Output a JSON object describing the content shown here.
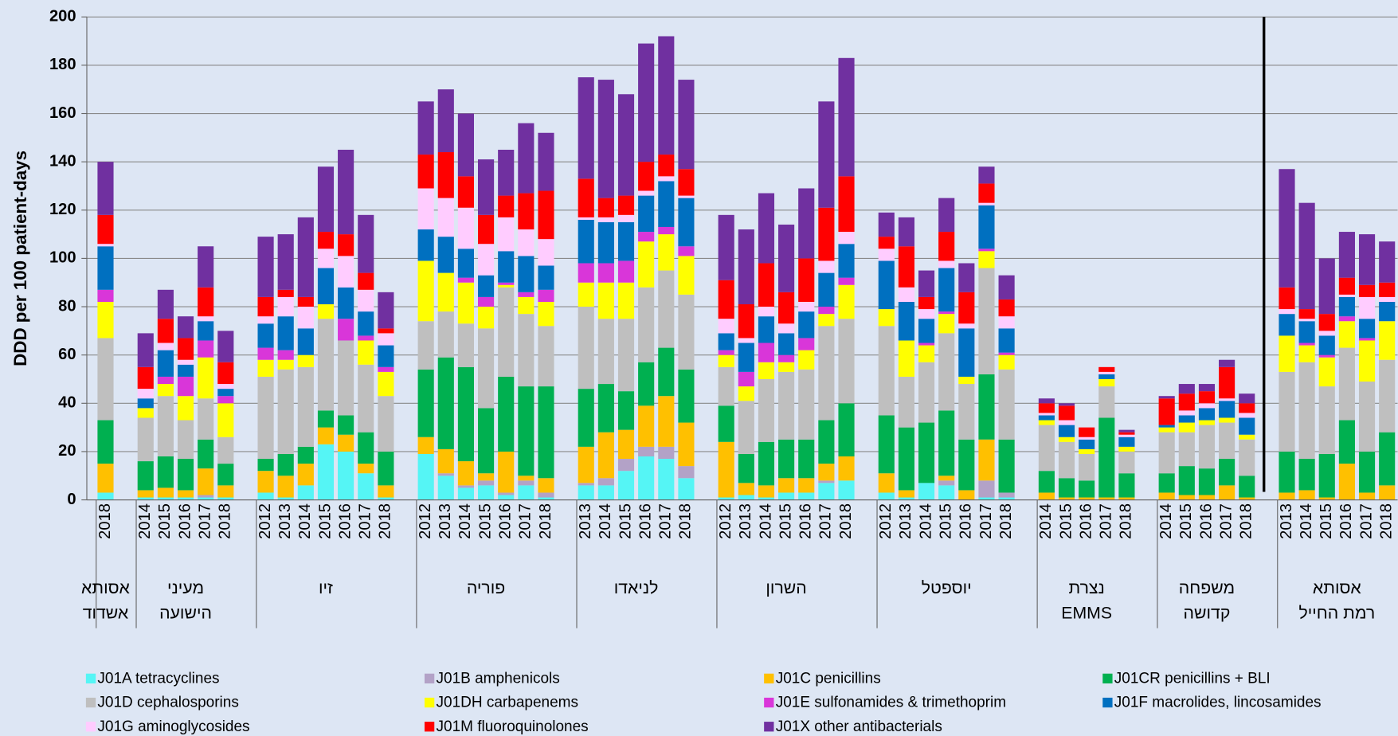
{
  "chart_data": {
    "type": "stacked_bar",
    "y_label": "DDD per 100 patient-days",
    "ylim": [
      0,
      200
    ],
    "yticks": [
      0,
      20,
      40,
      60,
      80,
      100,
      120,
      140,
      160,
      180,
      200
    ],
    "grid": true,
    "legend": "bottom",
    "groups": [
      {
        "name": [
          "אסותא",
          "אשדוד"
        ],
        "categories": [
          "2018"
        ]
      },
      {
        "name": [
          "מעיני",
          "הישועה"
        ],
        "categories": [
          "2014",
          "2015",
          "2016",
          "2017",
          "2018"
        ]
      },
      {
        "name": [
          "זיו"
        ],
        "categories": [
          "2012",
          "2013",
          "2014",
          "2015",
          "2016",
          "2017",
          "2018"
        ]
      },
      {
        "name": [
          "פוריה"
        ],
        "categories": [
          "2012",
          "2013",
          "2014",
          "2015",
          "2016",
          "2017",
          "2018"
        ]
      },
      {
        "name": [
          "לניאדו"
        ],
        "categories": [
          "2013",
          "2014",
          "2015",
          "2016",
          "2017",
          "2018"
        ]
      },
      {
        "name": [
          "השרון"
        ],
        "categories": [
          "2012",
          "2013",
          "2014",
          "2015",
          "2016",
          "2017",
          "2018"
        ]
      },
      {
        "name": [
          "יוספטל"
        ],
        "categories": [
          "2012",
          "2013",
          "2014",
          "2015",
          "2016",
          "2017",
          "2018"
        ]
      },
      {
        "name": [
          "נצרת",
          "EMMS"
        ],
        "categories": [
          "2014",
          "2015",
          "2016",
          "2017",
          "2018"
        ]
      },
      {
        "name": [
          "משפחה",
          "קדושה"
        ],
        "categories": [
          "2014",
          "2015",
          "2016",
          "2017",
          "2018"
        ]
      },
      {
        "name": [
          "אסותא",
          "רמת החייל"
        ],
        "categories": [
          "2013",
          "2014",
          "2015",
          "2016",
          "2017",
          "2018"
        ]
      }
    ],
    "series": [
      {
        "name": "J01A tetracyclines",
        "color": "#55f5f5",
        "values": [
          3,
          1,
          1,
          1,
          1,
          1,
          3,
          1,
          6,
          23,
          20,
          11,
          1,
          19,
          10,
          5,
          6,
          2,
          6,
          1,
          6,
          6,
          12,
          18,
          17,
          9,
          1,
          2,
          1,
          3,
          3,
          7,
          8,
          3,
          1,
          7,
          6,
          0,
          1,
          1,
          0,
          0,
          0,
          0,
          0,
          0,
          0,
          0,
          0,
          0,
          0,
          0,
          0,
          0,
          0,
          0
        ]
      },
      {
        "name": "J01B amphenicols",
        "color": "#b3a2c7",
        "values": [
          0,
          0,
          0,
          0,
          1,
          0,
          0,
          0,
          0,
          0,
          0,
          0,
          0,
          0,
          1,
          1,
          2,
          1,
          2,
          2,
          1,
          3,
          5,
          4,
          5,
          5,
          0,
          0,
          0,
          0,
          0,
          1,
          0,
          0,
          0,
          0,
          2,
          0,
          7,
          2,
          0,
          0,
          0,
          0,
          0,
          0,
          0,
          0,
          0,
          0,
          0,
          0,
          0,
          0,
          0,
          0
        ]
      },
      {
        "name": "J01C penicillins",
        "color": "#ffc000",
        "values": [
          12,
          3,
          4,
          3,
          11,
          5,
          9,
          9,
          9,
          7,
          7,
          4,
          5,
          7,
          10,
          10,
          3,
          17,
          2,
          6,
          15,
          19,
          12,
          17,
          21,
          18,
          23,
          5,
          5,
          6,
          6,
          7,
          10,
          8,
          3,
          0,
          2,
          4,
          17,
          0,
          3,
          1,
          1,
          1,
          1,
          3,
          2,
          2,
          6,
          1,
          3,
          4,
          1,
          15,
          3,
          6
        ]
      },
      {
        "name": "J01CR penicillins + BLI",
        "color": "#00b050",
        "values": [
          18,
          12,
          13,
          13,
          12,
          9,
          5,
          9,
          7,
          7,
          8,
          13,
          14,
          28,
          38,
          39,
          27,
          31,
          37,
          38,
          24,
          20,
          16,
          18,
          20,
          22,
          15,
          12,
          18,
          16,
          16,
          18,
          22,
          24,
          26,
          25,
          27,
          21,
          27,
          22,
          9,
          8,
          7,
          33,
          10,
          8,
          12,
          11,
          11,
          9,
          17,
          13,
          18,
          18,
          17,
          22
        ]
      },
      {
        "name": "J01D cephalosporins",
        "color": "#bfbfbf",
        "values": [
          34,
          18,
          25,
          16,
          17,
          11,
          34,
          35,
          33,
          38,
          31,
          28,
          23,
          20,
          19,
          18,
          33,
          37,
          30,
          25,
          34,
          27,
          30,
          31,
          32,
          31,
          16,
          22,
          26,
          28,
          29,
          39,
          35,
          37,
          21,
          25,
          32,
          23,
          44,
          29,
          19,
          15,
          11,
          13,
          9,
          17,
          14,
          18,
          15,
          15,
          33,
          40,
          28,
          30,
          29,
          30
        ]
      },
      {
        "name": "J01DH carbapenems",
        "color": "#ffff00",
        "values": [
          15,
          4,
          5,
          10,
          17,
          14,
          7,
          4,
          5,
          6,
          0,
          10,
          10,
          25,
          16,
          17,
          9,
          1,
          7,
          10,
          10,
          15,
          15,
          19,
          15,
          16,
          5,
          6,
          7,
          4,
          8,
          5,
          14,
          7,
          15,
          7,
          8,
          3,
          7,
          6,
          2,
          2,
          2,
          3,
          2,
          2,
          4,
          2,
          2,
          2,
          15,
          7,
          12,
          11,
          17,
          16
        ]
      },
      {
        "name": "J01E sulfonamides & trimethoprim",
        "color": "#d936d9",
        "values": [
          5,
          0,
          3,
          8,
          7,
          3,
          5,
          4,
          0,
          0,
          9,
          2,
          2,
          0,
          0,
          2,
          4,
          1,
          2,
          5,
          8,
          8,
          9,
          4,
          3,
          4,
          2,
          6,
          8,
          3,
          5,
          3,
          3,
          0,
          0,
          1,
          1,
          0,
          1,
          1,
          0,
          0,
          0,
          0,
          0,
          0,
          0,
          0,
          0,
          0,
          0,
          1,
          1,
          2,
          1,
          0
        ]
      },
      {
        "name": "J01F macrolides, lincosamides",
        "color": "#0070c0",
        "values": [
          18,
          4,
          11,
          5,
          8,
          3,
          10,
          14,
          11,
          15,
          13,
          10,
          9,
          13,
          15,
          12,
          9,
          13,
          15,
          10,
          18,
          17,
          16,
          15,
          19,
          20,
          7,
          12,
          11,
          9,
          11,
          14,
          14,
          20,
          16,
          10,
          18,
          20,
          18,
          10,
          2,
          5,
          4,
          2,
          4,
          1,
          3,
          5,
          7,
          7,
          9,
          9,
          8,
          8,
          8,
          8
        ]
      },
      {
        "name": "J01G aminoglycosides",
        "color": "#ffccff",
        "values": [
          1,
          4,
          3,
          2,
          2,
          2,
          3,
          8,
          9,
          8,
          13,
          9,
          5,
          17,
          16,
          17,
          13,
          14,
          11,
          11,
          1,
          2,
          3,
          2,
          2,
          1,
          6,
          2,
          4,
          4,
          4,
          5,
          5,
          5,
          6,
          4,
          3,
          2,
          1,
          5,
          1,
          2,
          1,
          1,
          1,
          0,
          2,
          2,
          1,
          2,
          2,
          1,
          2,
          1,
          9,
          2
        ]
      },
      {
        "name": "J01M fluoroquinolones",
        "color": "#ff0000",
        "values": [
          12,
          9,
          10,
          9,
          12,
          9,
          8,
          3,
          4,
          7,
          9,
          7,
          2,
          14,
          19,
          13,
          12,
          9,
          15,
          20,
          16,
          8,
          8,
          12,
          9,
          11,
          16,
          14,
          18,
          13,
          18,
          22,
          23,
          5,
          17,
          5,
          12,
          13,
          8,
          7,
          4,
          6,
          4,
          2,
          1,
          11,
          7,
          5,
          13,
          4,
          9,
          4,
          7,
          7,
          5,
          6
        ]
      },
      {
        "name": "J01X other antibacterials",
        "color": "#7030a0",
        "values": [
          22,
          14,
          12,
          9,
          17,
          13,
          25,
          23,
          33,
          27,
          35,
          24,
          15,
          22,
          26,
          26,
          23,
          19,
          29,
          24,
          42,
          49,
          42,
          49,
          49,
          37,
          27,
          31,
          29,
          28,
          29,
          44,
          49,
          10,
          12,
          11,
          14,
          12,
          7,
          10,
          2,
          1,
          0,
          0,
          1,
          1,
          4,
          3,
          3,
          4,
          49,
          44,
          23,
          19,
          21,
          17
        ]
      }
    ]
  }
}
